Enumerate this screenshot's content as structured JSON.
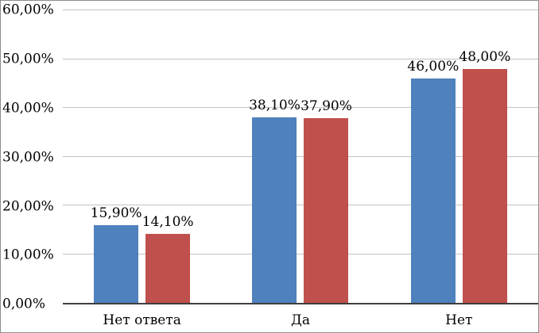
{
  "chart_data": {
    "type": "bar",
    "title": "",
    "xlabel": "",
    "ylabel": "",
    "categories": [
      "Нет ответа",
      "Да",
      "Нет"
    ],
    "series": [
      {
        "name": "series-1",
        "color": "#4F81BD",
        "values": [
          15.9,
          38.1,
          46.0
        ],
        "labels": [
          "15,90%",
          "38,10%",
          "46,00%"
        ]
      },
      {
        "name": "series-2",
        "color": "#C0504D",
        "values": [
          14.1,
          37.9,
          48.0
        ],
        "labels": [
          "14,10%",
          "37,90%",
          "48,00%"
        ]
      }
    ],
    "ylim": [
      0,
      60
    ],
    "yticks": [
      "0,00%",
      "10,00%",
      "20,00%",
      "30,00%",
      "40,00%",
      "50,00%",
      "60,00%"
    ],
    "grid": true,
    "legend": "none"
  }
}
